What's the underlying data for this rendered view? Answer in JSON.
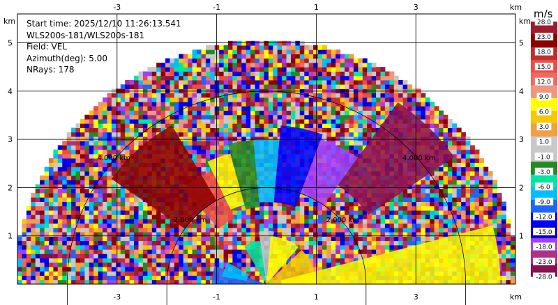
{
  "chart_data": {
    "type": "heatmap",
    "subtype": "ppi-radar-sector",
    "info": {
      "start_time": "Start time: 2025/12/10 11:26:13.541",
      "instrument": "WLS200s-181/WLS200s-181",
      "field": "Field: VEL",
      "azimuth": "Azimuth(deg): 5.00",
      "nrays": "NRays: 178"
    },
    "x_unit": "km",
    "y_unit": "km",
    "xlim": [
      -5.0,
      5.0
    ],
    "ylim": [
      0,
      5.6
    ],
    "x_ticks": [
      "-3",
      "-1",
      "1",
      "3"
    ],
    "x_tick_values": [
      -3,
      -1,
      1,
      3
    ],
    "y_ticks": [
      "1",
      "2",
      "3",
      "4",
      "5"
    ],
    "y_tick_values": [
      1,
      2,
      3,
      4,
      5
    ],
    "max_range_km": 5.05,
    "grid": true,
    "range_rings": [
      {
        "label": "2.000 km",
        "value": 2.0
      },
      {
        "label": "4.000 km",
        "value": 4.0
      }
    ],
    "colorbar": {
      "title": "m/s",
      "ticks": [
        "28.0",
        "23.0",
        "18.0",
        "15.0",
        "12.0",
        "9.0",
        "6.0",
        "3.0",
        "1.0",
        "-1.0",
        "-3.0",
        "-6.0",
        "-9.0",
        "-12.0",
        "-15.0",
        "-18.0",
        "-23.0",
        "-28.0"
      ],
      "colors": [
        "#a01c2c",
        "#8b0000",
        "#c0302a",
        "#ef4b47",
        "#f0685e",
        "#f0967e",
        "#ffff00",
        "#f5c800",
        "#f0a040",
        "#c8c8c8",
        "#c8c8c8",
        "#228b22",
        "#00e6a0",
        "#00bfff",
        "#1e64ff",
        "#0000ff",
        "#0000cd",
        "#a040ff",
        "#b03080",
        "#8b1050"
      ]
    },
    "sectors": [
      {
        "name": "near-receding-left",
        "az_from": -90,
        "az_to": -70,
        "r_from": 0,
        "r_to": 1.1,
        "color": "#1e64ff"
      },
      {
        "name": "near-cyan-left",
        "az_from": -80,
        "az_to": -60,
        "r_from": 0.4,
        "r_to": 0.9,
        "color": "#00bfff"
      },
      {
        "name": "near-green",
        "az_from": -30,
        "az_to": -5,
        "r_from": 0,
        "r_to": 0.9,
        "color": "#00e6a0"
      },
      {
        "name": "near-gray",
        "az_from": -8,
        "az_to": 8,
        "r_from": 0,
        "r_to": 1.1,
        "color": "#c8c8c8"
      },
      {
        "name": "near-yellow",
        "az_from": 5,
        "az_to": 40,
        "r_from": 0,
        "r_to": 1.0,
        "color": "#ffff00"
      },
      {
        "name": "near-orange-right",
        "az_from": 45,
        "az_to": 90,
        "r_from": 0,
        "r_to": 1.0,
        "color": "#f5c800"
      },
      {
        "name": "right-yellow-band",
        "az_from": 75,
        "az_to": 90,
        "r_from": 0.3,
        "r_to": 4.7,
        "color": "#ffff00"
      },
      {
        "name": "mid-red",
        "az_from": -40,
        "az_to": -25,
        "r_from": 1.5,
        "r_to": 2.6,
        "color": "#ef4b47"
      },
      {
        "name": "mid-yellow",
        "az_from": -25,
        "az_to": -15,
        "r_from": 1.7,
        "r_to": 2.8,
        "color": "#ffff00"
      },
      {
        "name": "mid-green",
        "az_from": -15,
        "az_to": -5,
        "r_from": 1.6,
        "r_to": 3.0,
        "color": "#228b22"
      },
      {
        "name": "mid-cyan",
        "az_from": -5,
        "az_to": 5,
        "r_from": 1.7,
        "r_to": 3.0,
        "color": "#00bfff"
      },
      {
        "name": "mid-blue",
        "az_from": 5,
        "az_to": 20,
        "r_from": 1.7,
        "r_to": 3.3,
        "color": "#0000ff"
      },
      {
        "name": "mid-purple",
        "az_from": 20,
        "az_to": 35,
        "r_from": 2.0,
        "r_to": 3.2,
        "color": "#a040ff"
      },
      {
        "name": "far-dark-red-left",
        "az_from": -55,
        "az_to": -30,
        "r_from": 2.0,
        "r_to": 3.8,
        "color": "#8b0000"
      },
      {
        "name": "far-maroon-right",
        "az_from": 35,
        "az_to": 55,
        "r_from": 2.5,
        "r_to": 4.6,
        "color": "#8b1050"
      }
    ]
  }
}
